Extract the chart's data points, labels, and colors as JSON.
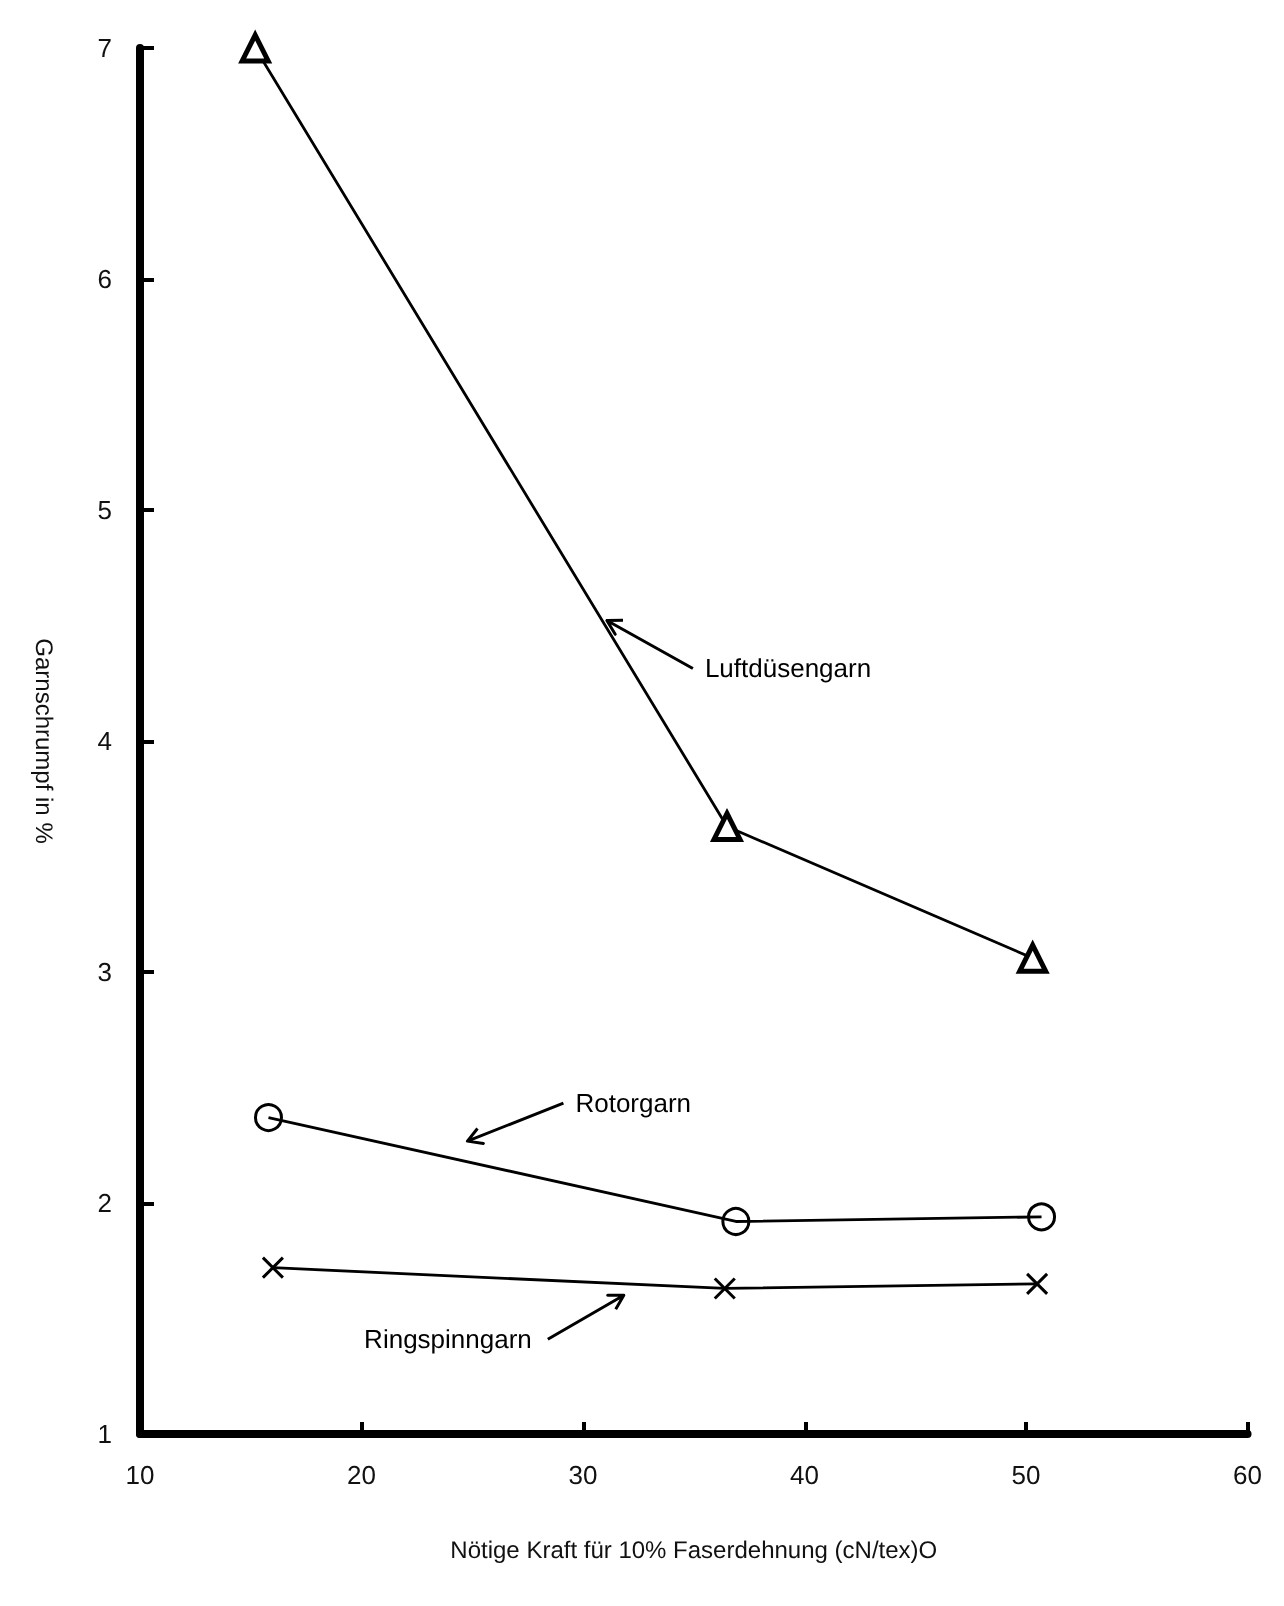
{
  "chart_data": {
    "type": "line",
    "xlabel": "Nötige Kraft für 10% Faserdehnung (cN/tex)O",
    "ylabel": "Garnschrumpf in %",
    "xlim": [
      10,
      60
    ],
    "xticks": [
      10,
      20,
      30,
      40,
      50,
      60
    ],
    "ylim": [
      1,
      7
    ],
    "yticks": [
      1,
      2,
      3,
      4,
      5,
      6,
      7
    ],
    "grid": false,
    "legend": false,
    "series": [
      {
        "name": "Luftdüsengarn",
        "color": "#000000",
        "marker": "triangle",
        "x": [
          15.2,
          36.5,
          50.3
        ],
        "values": [
          7.0,
          3.63,
          3.06
        ]
      },
      {
        "name": "Rotorgarn",
        "color": "#000000",
        "marker": "circle",
        "x": [
          15.8,
          36.9,
          50.7
        ],
        "values": [
          2.37,
          1.92,
          1.94
        ]
      },
      {
        "name": "Ringspinngarn",
        "color": "#000000",
        "marker": "cross",
        "x": [
          16.0,
          36.4,
          50.5
        ],
        "values": [
          1.72,
          1.63,
          1.65
        ]
      }
    ]
  }
}
